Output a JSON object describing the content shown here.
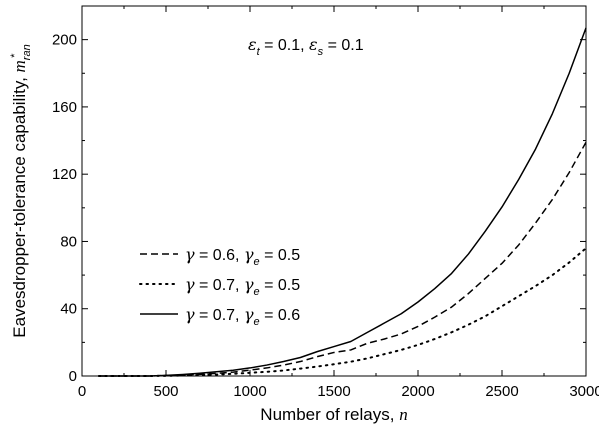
{
  "chart_data": {
    "type": "line",
    "x": [
      100,
      200,
      300,
      400,
      500,
      600,
      700,
      800,
      900,
      1000,
      1100,
      1200,
      1300,
      1400,
      1500,
      1600,
      1700,
      1800,
      1900,
      2000,
      2100,
      2200,
      2300,
      2400,
      2500,
      2600,
      2700,
      2800,
      2900,
      3000
    ],
    "series": [
      {
        "legend_parts": [
          "γ",
          " = 0.6, ",
          "γ",
          "e",
          " = 0.5"
        ],
        "style": "dashed",
        "color": "#000000",
        "values": [
          0,
          0,
          0,
          0,
          0.3,
          0.6,
          1.0,
          1.6,
          2.3,
          3.5,
          4.8,
          6.5,
          8.6,
          11.5,
          14.0,
          15.5,
          19.5,
          22.0,
          25.0,
          29.5,
          35.0,
          41.0,
          49.0,
          58.0,
          67.0,
          78.0,
          91.0,
          105.0,
          121.0,
          139.0
        ]
      },
      {
        "legend_parts": [
          "γ",
          " = 0.7, ",
          "γ",
          "e",
          " = 0.5"
        ],
        "style": "dotted",
        "color": "#000000",
        "values": [
          0,
          0,
          0,
          0,
          0.1,
          0.3,
          0.6,
          0.9,
          1.3,
          1.9,
          2.5,
          3.3,
          4.4,
          5.6,
          7.0,
          8.5,
          10.5,
          13.0,
          15.5,
          18.5,
          22.0,
          26.0,
          30.5,
          35.5,
          41.5,
          47.5,
          53.5,
          60.0,
          67.5,
          76.0
        ]
      },
      {
        "legend_parts": [
          "γ",
          " = 0.7, ",
          "γ",
          "e",
          " = 0.6"
        ],
        "style": "solid",
        "color": "#000000",
        "values": [
          0,
          0,
          0,
          0,
          0.4,
          0.9,
          1.6,
          2.5,
          3.4,
          4.8,
          6.5,
          8.6,
          11.0,
          14.5,
          17.5,
          20.5,
          26.0,
          31.5,
          37.0,
          44.0,
          52.0,
          61.0,
          72.5,
          86.0,
          100.5,
          117.0,
          135.0,
          156.0,
          180.0,
          207.0
        ]
      }
    ],
    "xlabel_parts": [
      "Number of relays,  ",
      "n"
    ],
    "ylabel_parts": [
      "Eavesdropper-tolerance capability,  ",
      "m",
      "ran",
      "*"
    ],
    "annotation_parts": [
      "ε",
      "t",
      " = 0.1, ",
      "ε",
      "s",
      " = 0.1"
    ],
    "xticks": [
      "0",
      "500",
      "1000",
      "1500",
      "2000",
      "2500",
      "3000"
    ],
    "yticks": [
      "0",
      "40",
      "80",
      "120",
      "160",
      "200"
    ],
    "xlim": [
      0,
      3000
    ],
    "ylim": [
      0,
      220
    ],
    "grid": false,
    "legend_position": "center-left"
  }
}
